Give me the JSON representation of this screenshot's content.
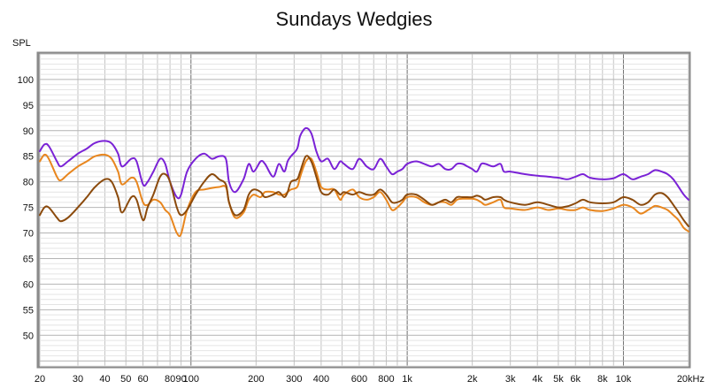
{
  "chart_data": {
    "type": "line",
    "title": "Sundays Wedgies",
    "xlabel": "",
    "ylabel": "SPL",
    "x_scale": "log",
    "xlim": [
      20,
      20000
    ],
    "ylim": [
      44,
      105
    ],
    "grid": true,
    "legend": "none",
    "x_ticks": [
      20,
      30,
      40,
      50,
      60,
      80,
      90,
      100,
      200,
      300,
      400,
      600,
      800,
      1000,
      2000,
      3000,
      4000,
      5000,
      6000,
      8000,
      10000,
      20000
    ],
    "x_tick_labels": [
      "20",
      "30",
      "40",
      "50",
      "60",
      "80",
      "90",
      "100",
      "200",
      "300",
      "400",
      "600",
      "800",
      "1k",
      "2k",
      "3k",
      "4k",
      "5k",
      "6k",
      "8k",
      "10k",
      "20kHz"
    ],
    "y_ticks": [
      50,
      55,
      60,
      65,
      70,
      75,
      80,
      85,
      90,
      95,
      100
    ],
    "y_tick_labels": [
      "50",
      "55",
      "60",
      "65",
      "70",
      "75",
      "80",
      "85",
      "90",
      "95",
      "100"
    ],
    "series": [
      {
        "color": "#7a22d6",
        "points": [
          [
            20,
            86
          ],
          [
            21,
            87.3
          ],
          [
            22,
            87
          ],
          [
            24,
            84
          ],
          [
            25,
            83
          ],
          [
            27,
            84
          ],
          [
            30,
            85.5
          ],
          [
            33,
            86.5
          ],
          [
            36,
            87.6
          ],
          [
            40,
            88
          ],
          [
            43,
            87.5
          ],
          [
            46,
            85.5
          ],
          [
            48,
            83
          ],
          [
            53,
            84.5
          ],
          [
            56,
            84
          ],
          [
            60,
            79.5
          ],
          [
            63,
            80
          ],
          [
            67,
            82
          ],
          [
            72,
            84.5
          ],
          [
            76,
            83.5
          ],
          [
            80,
            80
          ],
          [
            86,
            77
          ],
          [
            90,
            77.5
          ],
          [
            96,
            82
          ],
          [
            105,
            84.5
          ],
          [
            115,
            85.5
          ],
          [
            125,
            84.5
          ],
          [
            135,
            85
          ],
          [
            145,
            84.5
          ],
          [
            150,
            80
          ],
          [
            160,
            78
          ],
          [
            175,
            80.5
          ],
          [
            185,
            83.5
          ],
          [
            195,
            82
          ],
          [
            210,
            84
          ],
          [
            220,
            83.5
          ],
          [
            240,
            81
          ],
          [
            255,
            83.5
          ],
          [
            270,
            82
          ],
          [
            280,
            84
          ],
          [
            290,
            85
          ],
          [
            310,
            86.5
          ],
          [
            320,
            89
          ],
          [
            340,
            90.5
          ],
          [
            360,
            89.5
          ],
          [
            380,
            86
          ],
          [
            400,
            84
          ],
          [
            430,
            84.5
          ],
          [
            460,
            82.5
          ],
          [
            490,
            84
          ],
          [
            510,
            83.5
          ],
          [
            560,
            82.5
          ],
          [
            600,
            84.5
          ],
          [
            650,
            83
          ],
          [
            700,
            82.5
          ],
          [
            750,
            84.5
          ],
          [
            800,
            83
          ],
          [
            850,
            81.5
          ],
          [
            900,
            82
          ],
          [
            950,
            82.5
          ],
          [
            1000,
            83.5
          ],
          [
            1100,
            84
          ],
          [
            1200,
            83.5
          ],
          [
            1300,
            83
          ],
          [
            1400,
            83.5
          ],
          [
            1500,
            82.5
          ],
          [
            1600,
            82.5
          ],
          [
            1700,
            83.5
          ],
          [
            1800,
            83.5
          ],
          [
            1900,
            83
          ],
          [
            2000,
            82.5
          ],
          [
            2100,
            82
          ],
          [
            2200,
            83.5
          ],
          [
            2300,
            83.5
          ],
          [
            2500,
            83
          ],
          [
            2700,
            83.5
          ],
          [
            2800,
            82
          ],
          [
            3000,
            82
          ],
          [
            3500,
            81.5
          ],
          [
            4000,
            81.2
          ],
          [
            4500,
            81
          ],
          [
            5000,
            80.8
          ],
          [
            5500,
            80.5
          ],
          [
            6000,
            81
          ],
          [
            6500,
            81.5
          ],
          [
            7000,
            80.8
          ],
          [
            8000,
            80.5
          ],
          [
            9000,
            80.7
          ],
          [
            10000,
            81.5
          ],
          [
            11000,
            80.5
          ],
          [
            12000,
            81
          ],
          [
            13000,
            81.5
          ],
          [
            14000,
            82.3
          ],
          [
            15000,
            82
          ],
          [
            16000,
            81.5
          ],
          [
            17000,
            80.5
          ],
          [
            18000,
            79
          ],
          [
            19000,
            77.5
          ],
          [
            20000,
            76.5
          ]
        ]
      },
      {
        "color": "#e8861e",
        "points": [
          [
            20,
            84
          ],
          [
            21,
            85.3
          ],
          [
            22,
            84.5
          ],
          [
            24,
            81
          ],
          [
            25,
            80.3
          ],
          [
            27,
            81.5
          ],
          [
            30,
            83
          ],
          [
            33,
            84
          ],
          [
            36,
            85
          ],
          [
            40,
            85.3
          ],
          [
            43,
            84.5
          ],
          [
            46,
            82
          ],
          [
            48,
            79.5
          ],
          [
            53,
            80.8
          ],
          [
            56,
            80
          ],
          [
            60,
            76
          ],
          [
            63,
            75.5
          ],
          [
            67,
            76.5
          ],
          [
            72,
            76
          ],
          [
            76,
            74.5
          ],
          [
            80,
            73.5
          ],
          [
            86,
            70
          ],
          [
            90,
            69.8
          ],
          [
            96,
            74.5
          ],
          [
            105,
            78
          ],
          [
            115,
            78.5
          ],
          [
            125,
            78.8
          ],
          [
            135,
            79
          ],
          [
            145,
            79
          ],
          [
            150,
            76
          ],
          [
            160,
            73
          ],
          [
            175,
            74
          ],
          [
            185,
            76.5
          ],
          [
            195,
            77.5
          ],
          [
            210,
            77
          ],
          [
            220,
            78
          ],
          [
            240,
            78
          ],
          [
            255,
            77.5
          ],
          [
            270,
            77.5
          ],
          [
            280,
            78
          ],
          [
            290,
            78.5
          ],
          [
            310,
            79
          ],
          [
            320,
            81
          ],
          [
            340,
            84
          ],
          [
            360,
            84.5
          ],
          [
            380,
            82
          ],
          [
            400,
            79
          ],
          [
            430,
            78.5
          ],
          [
            460,
            78.5
          ],
          [
            490,
            76.5
          ],
          [
            510,
            77.5
          ],
          [
            560,
            78.5
          ],
          [
            600,
            77
          ],
          [
            650,
            76.5
          ],
          [
            700,
            77
          ],
          [
            750,
            78
          ],
          [
            800,
            76.5
          ],
          [
            850,
            74.5
          ],
          [
            900,
            75
          ],
          [
            950,
            76
          ],
          [
            1000,
            77
          ],
          [
            1100,
            77
          ],
          [
            1200,
            76
          ],
          [
            1300,
            75.5
          ],
          [
            1400,
            76
          ],
          [
            1500,
            76
          ],
          [
            1600,
            75.5
          ],
          [
            1700,
            76.5
          ],
          [
            1800,
            76.7
          ],
          [
            1900,
            76.7
          ],
          [
            2000,
            76.7
          ],
          [
            2100,
            76.5
          ],
          [
            2200,
            76
          ],
          [
            2300,
            75.5
          ],
          [
            2500,
            76
          ],
          [
            2700,
            76.5
          ],
          [
            2800,
            75
          ],
          [
            3000,
            74.8
          ],
          [
            3500,
            74.5
          ],
          [
            4000,
            75
          ],
          [
            4500,
            74.5
          ],
          [
            5000,
            74.8
          ],
          [
            5500,
            74.5
          ],
          [
            6000,
            74.5
          ],
          [
            6500,
            75
          ],
          [
            7000,
            74.5
          ],
          [
            8000,
            74.3
          ],
          [
            9000,
            74.8
          ],
          [
            10000,
            75.5
          ],
          [
            11000,
            75
          ],
          [
            12000,
            73.8
          ],
          [
            13000,
            74.5
          ],
          [
            14000,
            75.3
          ],
          [
            15000,
            75
          ],
          [
            16000,
            74.5
          ],
          [
            17000,
            73.5
          ],
          [
            18000,
            72.5
          ],
          [
            19000,
            71
          ],
          [
            20000,
            70.3
          ]
        ]
      },
      {
        "color": "#8b4a0c",
        "points": [
          [
            20,
            73.5
          ],
          [
            21,
            75
          ],
          [
            22,
            75
          ],
          [
            24,
            73
          ],
          [
            25,
            72.3
          ],
          [
            27,
            73
          ],
          [
            30,
            75
          ],
          [
            33,
            77
          ],
          [
            36,
            79
          ],
          [
            40,
            80.5
          ],
          [
            43,
            80
          ],
          [
            46,
            77
          ],
          [
            48,
            74
          ],
          [
            53,
            77
          ],
          [
            56,
            76.5
          ],
          [
            60,
            72.5
          ],
          [
            63,
            75
          ],
          [
            67,
            77.5
          ],
          [
            72,
            81
          ],
          [
            76,
            81.5
          ],
          [
            80,
            80
          ],
          [
            86,
            75
          ],
          [
            90,
            73.5
          ],
          [
            96,
            74.5
          ],
          [
            105,
            77.5
          ],
          [
            115,
            80
          ],
          [
            125,
            81.5
          ],
          [
            135,
            80.5
          ],
          [
            145,
            79.5
          ],
          [
            150,
            76
          ],
          [
            160,
            73.5
          ],
          [
            175,
            74.5
          ],
          [
            185,
            77.5
          ],
          [
            195,
            78.5
          ],
          [
            210,
            78
          ],
          [
            220,
            77
          ],
          [
            240,
            77.5
          ],
          [
            255,
            78
          ],
          [
            270,
            77
          ],
          [
            280,
            78
          ],
          [
            290,
            80
          ],
          [
            310,
            80.5
          ],
          [
            320,
            82
          ],
          [
            340,
            85
          ],
          [
            360,
            84
          ],
          [
            380,
            81
          ],
          [
            400,
            78
          ],
          [
            430,
            77.5
          ],
          [
            460,
            78.5
          ],
          [
            490,
            77.5
          ],
          [
            510,
            78
          ],
          [
            560,
            77.5
          ],
          [
            600,
            78
          ],
          [
            650,
            77.5
          ],
          [
            700,
            77.5
          ],
          [
            750,
            78.5
          ],
          [
            800,
            77.5
          ],
          [
            850,
            76
          ],
          [
            900,
            76
          ],
          [
            950,
            76.5
          ],
          [
            1000,
            77.5
          ],
          [
            1100,
            77.5
          ],
          [
            1200,
            76.5
          ],
          [
            1300,
            75.5
          ],
          [
            1400,
            76
          ],
          [
            1500,
            76.5
          ],
          [
            1600,
            76
          ],
          [
            1700,
            77
          ],
          [
            1800,
            77
          ],
          [
            1900,
            77
          ],
          [
            2000,
            77
          ],
          [
            2100,
            77.3
          ],
          [
            2200,
            77
          ],
          [
            2300,
            76.5
          ],
          [
            2500,
            77
          ],
          [
            2700,
            77
          ],
          [
            2800,
            76.5
          ],
          [
            3000,
            76
          ],
          [
            3500,
            75.5
          ],
          [
            4000,
            76
          ],
          [
            4500,
            75.5
          ],
          [
            5000,
            75
          ],
          [
            5500,
            75.2
          ],
          [
            6000,
            75.8
          ],
          [
            6500,
            76.5
          ],
          [
            7000,
            76
          ],
          [
            8000,
            75.8
          ],
          [
            9000,
            76
          ],
          [
            10000,
            77
          ],
          [
            11000,
            76.5
          ],
          [
            12000,
            75.5
          ],
          [
            13000,
            76
          ],
          [
            14000,
            77.5
          ],
          [
            15000,
            77.8
          ],
          [
            16000,
            77
          ],
          [
            17000,
            75.5
          ],
          [
            18000,
            74
          ],
          [
            19000,
            72.5
          ],
          [
            20000,
            71.3
          ]
        ]
      }
    ]
  }
}
